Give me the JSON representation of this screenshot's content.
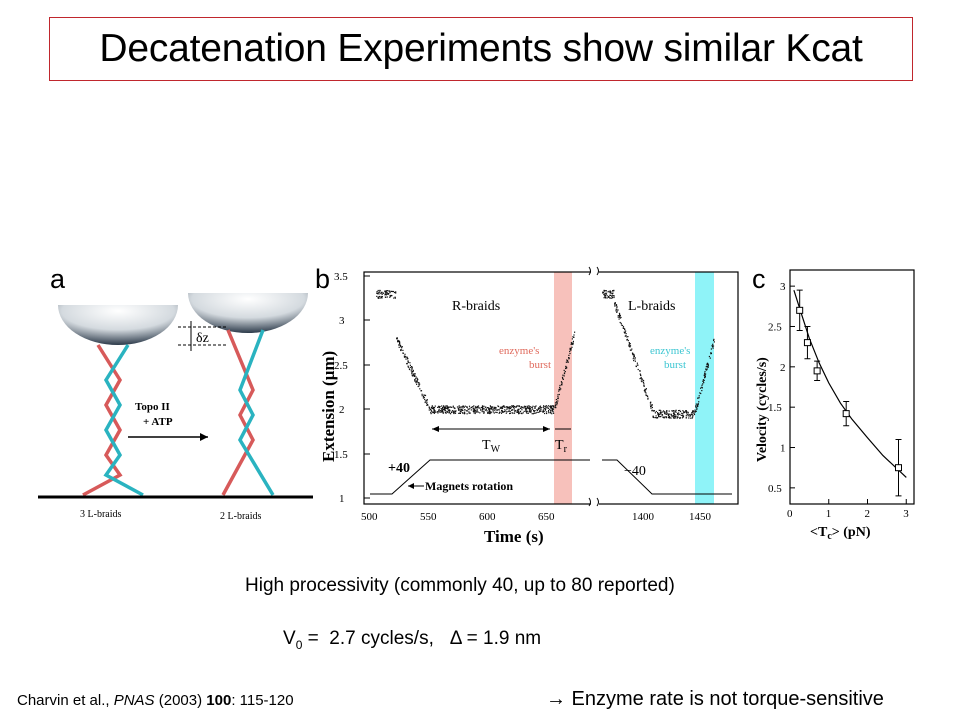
{
  "slide": {
    "title": "Decatenation Experiments show similar Kcat",
    "panels": {
      "a": "a",
      "b": "b",
      "c": "c"
    },
    "processivity": "High processivity (commonly 40, up to 80 reported)",
    "v0": {
      "symbol": "V",
      "subscript": "0",
      "text": " =  2.7 cycles/s,   ",
      "delta": "Δ",
      "delta_text": " = 1.9 nm"
    },
    "citation": {
      "authors": "Charvin et al., ",
      "journal": "PNAS",
      "year": " (2003) ",
      "volume": "100",
      "pages": ": 115-120"
    },
    "conclusion": {
      "arrow": "→",
      "text": " Enzyme rate is not torque-sensitive"
    }
  },
  "panel_a": {
    "dz": "δz",
    "reaction_line1": "Topo II",
    "reaction_line2": "+ ATP",
    "left_caption": "3 L-braids",
    "right_caption": "2 L-braids"
  },
  "panel_b": {
    "ylabel": "Extension (μm)",
    "xlabel": "Time (s)",
    "yticks": [
      "1",
      "1.5",
      "2",
      "2.5",
      "3",
      "3.5"
    ],
    "xticks_left": [
      "500",
      "550",
      "600",
      "650"
    ],
    "xticks_right": [
      "1400",
      "1450"
    ],
    "r_braids": "R-braids",
    "l_braids": "L-braids",
    "burst_left": [
      "enzyme's",
      "burst"
    ],
    "burst_right": [
      "enzyme's",
      "burst"
    ],
    "tw": "T",
    "tw_sub": "W",
    "tr": "T",
    "tr_sub": "r",
    "plus40": "+40",
    "minus40": "−40",
    "magnets": "Magnets rotation",
    "colors": {
      "burst_left": "#f7c1bb",
      "burst_right": "#8ff3f8",
      "burst_left_text": "#e06a5c",
      "burst_right_text": "#3cc6d2"
    }
  },
  "chart_data": {
    "type": "scatter",
    "xlabel": "<T",
    "xlabel_sub": "c",
    "xlabel_end": "> (pN)",
    "ylabel": "Velocity (cycles/s)",
    "xlim": [
      0,
      3.2
    ],
    "ylim": [
      0.3,
      3.2
    ],
    "xticks": [
      0,
      1,
      2,
      3
    ],
    "yticks": [
      0.5,
      1,
      1.5,
      2,
      2.5,
      3
    ],
    "points": [
      {
        "x": 0.25,
        "y": 2.7,
        "err": 0.25
      },
      {
        "x": 0.45,
        "y": 2.3,
        "err": 0.2
      },
      {
        "x": 0.7,
        "y": 1.95,
        "err": 0.12
      },
      {
        "x": 1.45,
        "y": 1.42,
        "err": 0.15
      },
      {
        "x": 2.8,
        "y": 0.75,
        "err": 0.35
      }
    ],
    "fit": [
      [
        0.1,
        2.95
      ],
      [
        0.3,
        2.65
      ],
      [
        0.5,
        2.35
      ],
      [
        0.75,
        2.05
      ],
      [
        1.0,
        1.8
      ],
      [
        1.3,
        1.55
      ],
      [
        1.6,
        1.35
      ],
      [
        2.0,
        1.12
      ],
      [
        2.4,
        0.9
      ],
      [
        2.8,
        0.72
      ],
      [
        3.0,
        0.63
      ]
    ]
  }
}
